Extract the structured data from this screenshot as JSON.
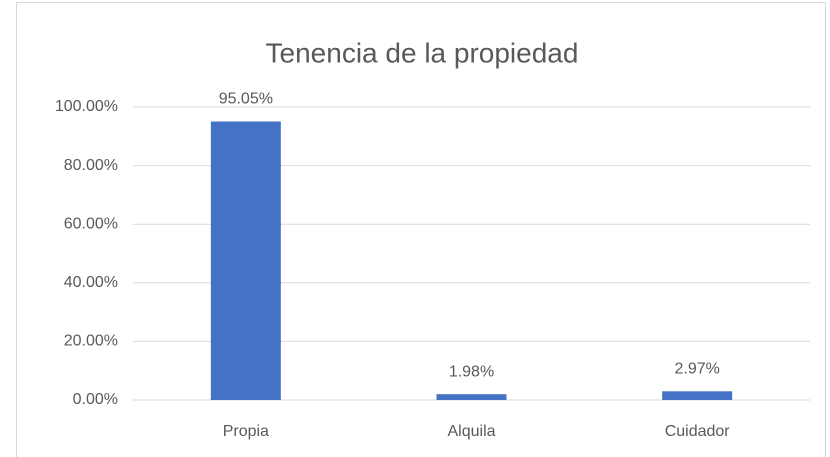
{
  "chart_data": {
    "type": "bar",
    "title": "Tenencia de la propiedad",
    "categories": [
      "Propia",
      "Alquila",
      "Cuidador"
    ],
    "values": [
      95.05,
      1.98,
      2.97
    ],
    "value_labels": [
      "95.05%",
      "1.98%",
      "2.97%"
    ],
    "color": "#4472c4",
    "ylim": [
      0,
      100
    ],
    "yticks": [
      {
        "value": 0,
        "label": "0.00%"
      },
      {
        "value": 20,
        "label": "20.00%"
      },
      {
        "value": 40,
        "label": "40.00%"
      },
      {
        "value": 60,
        "label": "60.00%"
      },
      {
        "value": 80,
        "label": "80.00%"
      },
      {
        "value": 100,
        "label": "100.00%"
      }
    ],
    "grid": true
  }
}
